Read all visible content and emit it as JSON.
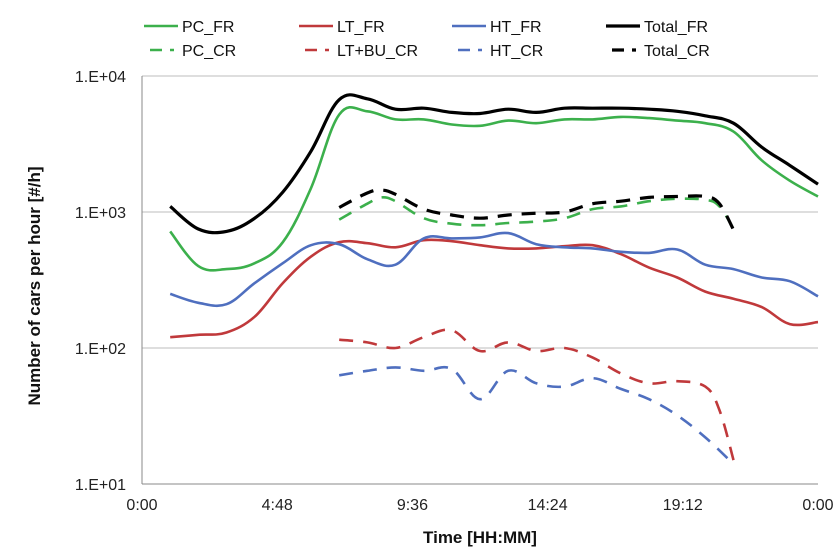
{
  "chart_data": {
    "type": "line",
    "title": "",
    "xlabel": "Time [HH:MM]",
    "ylabel": "Number of cars per hour [#/h]",
    "y_scale": "log",
    "ylim": [
      10,
      10000
    ],
    "xlim": [
      "0:00",
      "24:00"
    ],
    "grid": "horizontal",
    "legend_position": "top",
    "x_ticks": [
      "0:00",
      "4:48",
      "9:36",
      "14:24",
      "19:12",
      "0:00"
    ],
    "y_ticks": [
      "1.E+01",
      "1.E+02",
      "1.E+03",
      "1.E+04"
    ],
    "series": [
      {
        "name": "PC_FR",
        "color": "#3cb04c",
        "dash": "solid",
        "points": [
          [
            "1:00",
            720
          ],
          [
            "2:00",
            400
          ],
          [
            "3:00",
            380
          ],
          [
            "4:00",
            420
          ],
          [
            "5:00",
            600
          ],
          [
            "6:00",
            1500
          ],
          [
            "7:00",
            5200
          ],
          [
            "8:00",
            5500
          ],
          [
            "9:00",
            4800
          ],
          [
            "10:00",
            4800
          ],
          [
            "11:00",
            4400
          ],
          [
            "12:00",
            4300
          ],
          [
            "13:00",
            4700
          ],
          [
            "14:00",
            4500
          ],
          [
            "15:00",
            4800
          ],
          [
            "16:00",
            4800
          ],
          [
            "17:00",
            5000
          ],
          [
            "18:00",
            4900
          ],
          [
            "19:00",
            4700
          ],
          [
            "20:00",
            4500
          ],
          [
            "21:00",
            3900
          ],
          [
            "22:00",
            2400
          ],
          [
            "23:00",
            1700
          ],
          [
            "24:00",
            1300
          ]
        ]
      },
      {
        "name": "LT_FR",
        "color": "#c0393b",
        "dash": "solid",
        "points": [
          [
            "1:00",
            120
          ],
          [
            "2:00",
            125
          ],
          [
            "3:00",
            130
          ],
          [
            "4:00",
            170
          ],
          [
            "5:00",
            300
          ],
          [
            "6:00",
            470
          ],
          [
            "7:00",
            600
          ],
          [
            "8:00",
            590
          ],
          [
            "9:00",
            550
          ],
          [
            "10:00",
            620
          ],
          [
            "11:00",
            610
          ],
          [
            "12:00",
            570
          ],
          [
            "13:00",
            540
          ],
          [
            "14:00",
            540
          ],
          [
            "15:00",
            560
          ],
          [
            "16:00",
            570
          ],
          [
            "17:00",
            490
          ],
          [
            "18:00",
            390
          ],
          [
            "19:00",
            330
          ],
          [
            "20:00",
            260
          ],
          [
            "21:00",
            230
          ],
          [
            "22:00",
            200
          ],
          [
            "23:00",
            150
          ],
          [
            "24:00",
            155
          ]
        ]
      },
      {
        "name": "HT_FR",
        "color": "#4f6fbf",
        "dash": "solid",
        "points": [
          [
            "1:00",
            250
          ],
          [
            "2:00",
            215
          ],
          [
            "3:00",
            210
          ],
          [
            "4:00",
            300
          ],
          [
            "5:00",
            420
          ],
          [
            "6:00",
            570
          ],
          [
            "7:00",
            580
          ],
          [
            "8:00",
            450
          ],
          [
            "9:00",
            410
          ],
          [
            "10:00",
            640
          ],
          [
            "11:00",
            640
          ],
          [
            "12:00",
            650
          ],
          [
            "13:00",
            700
          ],
          [
            "14:00",
            580
          ],
          [
            "15:00",
            550
          ],
          [
            "16:00",
            540
          ],
          [
            "17:00",
            510
          ],
          [
            "18:00",
            500
          ],
          [
            "19:00",
            530
          ],
          [
            "20:00",
            410
          ],
          [
            "21:00",
            380
          ],
          [
            "22:00",
            330
          ],
          [
            "23:00",
            310
          ],
          [
            "24:00",
            240
          ]
        ]
      },
      {
        "name": "Total_FR",
        "color": "#000000",
        "dash": "solid",
        "points": [
          [
            "1:00",
            1100
          ],
          [
            "2:00",
            750
          ],
          [
            "3:00",
            720
          ],
          [
            "4:00",
            900
          ],
          [
            "5:00",
            1400
          ],
          [
            "6:00",
            2800
          ],
          [
            "7:00",
            6700
          ],
          [
            "8:00",
            6800
          ],
          [
            "9:00",
            5700
          ],
          [
            "10:00",
            5800
          ],
          [
            "11:00",
            5400
          ],
          [
            "12:00",
            5300
          ],
          [
            "13:00",
            5700
          ],
          [
            "14:00",
            5400
          ],
          [
            "15:00",
            5800
          ],
          [
            "16:00",
            5800
          ],
          [
            "17:00",
            5800
          ],
          [
            "18:00",
            5700
          ],
          [
            "19:00",
            5500
          ],
          [
            "20:00",
            5100
          ],
          [
            "21:00",
            4500
          ],
          [
            "22:00",
            3000
          ],
          [
            "23:00",
            2200
          ],
          [
            "24:00",
            1600
          ]
        ]
      },
      {
        "name": "PC_CR",
        "color": "#3cb04c",
        "dash": "dashed",
        "points": [
          [
            "7:00",
            880
          ],
          [
            "8:00",
            1150
          ],
          [
            "8:30",
            1280
          ],
          [
            "9:00",
            1200
          ],
          [
            "10:00",
            900
          ],
          [
            "11:00",
            820
          ],
          [
            "12:00",
            800
          ],
          [
            "13:00",
            830
          ],
          [
            "14:00",
            850
          ],
          [
            "15:00",
            900
          ],
          [
            "16:00",
            1050
          ],
          [
            "17:00",
            1100
          ],
          [
            "18:00",
            1200
          ],
          [
            "19:00",
            1250
          ],
          [
            "20:00",
            1230
          ],
          [
            "20:30",
            1100
          ],
          [
            "21:00",
            750
          ]
        ]
      },
      {
        "name": "LT+BU_CR",
        "color": "#c0393b",
        "dash": "dashed",
        "points": [
          [
            "7:00",
            115
          ],
          [
            "8:00",
            110
          ],
          [
            "9:00",
            100
          ],
          [
            "10:00",
            120
          ],
          [
            "11:00",
            135
          ],
          [
            "12:00",
            95
          ],
          [
            "13:00",
            110
          ],
          [
            "14:00",
            95
          ],
          [
            "15:00",
            100
          ],
          [
            "16:00",
            85
          ],
          [
            "17:00",
            65
          ],
          [
            "18:00",
            55
          ],
          [
            "19:00",
            57
          ],
          [
            "20:00",
            52
          ],
          [
            "20:30",
            35
          ],
          [
            "21:00",
            15
          ]
        ]
      },
      {
        "name": "HT_CR",
        "color": "#4f6fbf",
        "dash": "dashed",
        "points": [
          [
            "7:00",
            63
          ],
          [
            "8:00",
            68
          ],
          [
            "9:00",
            72
          ],
          [
            "10:00",
            68
          ],
          [
            "11:00",
            70
          ],
          [
            "12:00",
            42
          ],
          [
            "13:00",
            68
          ],
          [
            "14:00",
            55
          ],
          [
            "15:00",
            52
          ],
          [
            "16:00",
            60
          ],
          [
            "17:00",
            50
          ],
          [
            "18:00",
            42
          ],
          [
            "19:00",
            32
          ],
          [
            "20:00",
            22
          ],
          [
            "21:00",
            14
          ]
        ]
      },
      {
        "name": "Total_CR",
        "color": "#000000",
        "dash": "dashed",
        "points": [
          [
            "7:00",
            1080
          ],
          [
            "8:00",
            1380
          ],
          [
            "8:30",
            1450
          ],
          [
            "9:00",
            1350
          ],
          [
            "10:00",
            1050
          ],
          [
            "11:00",
            950
          ],
          [
            "12:00",
            900
          ],
          [
            "13:00",
            950
          ],
          [
            "14:00",
            980
          ],
          [
            "15:00",
            1000
          ],
          [
            "16:00",
            1150
          ],
          [
            "17:00",
            1200
          ],
          [
            "18:00",
            1280
          ],
          [
            "19:00",
            1300
          ],
          [
            "20:00",
            1300
          ],
          [
            "20:30",
            1150
          ],
          [
            "21:00",
            740
          ]
        ]
      }
    ]
  }
}
